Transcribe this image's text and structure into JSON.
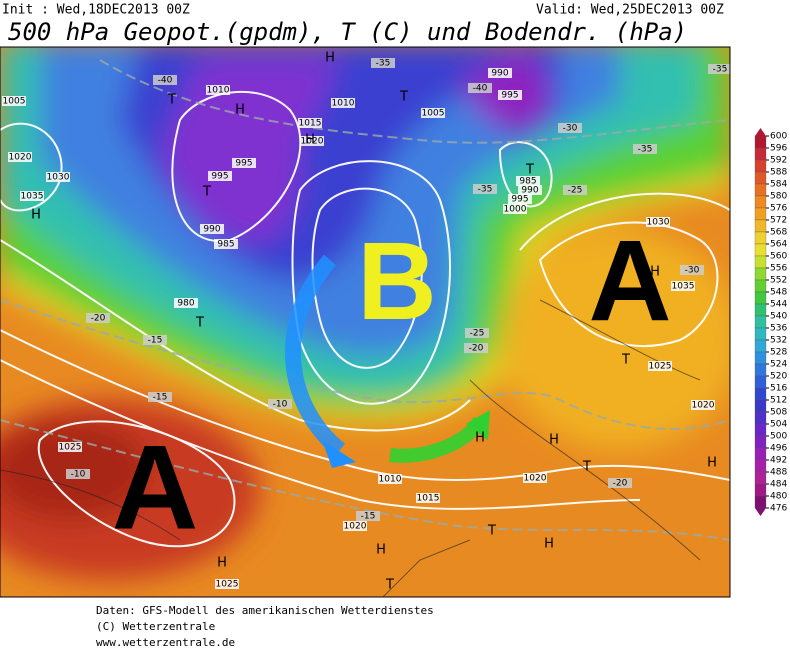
{
  "header": {
    "init": "Init : Wed,18DEC2013 00Z",
    "valid": "Valid: Wed,25DEC2013 00Z",
    "title": "500 hPa Geopot.(gpdm), T (C) und Bodendr. (hPa)"
  },
  "big_letters": [
    "A",
    "B",
    "A"
  ],
  "map_labels": [
    "1010",
    "1005",
    "1020",
    "1030",
    "1035",
    "995",
    "995",
    "990",
    "985",
    "980",
    "1010",
    "1015",
    "1020",
    "1005",
    "990",
    "995",
    "985",
    "990",
    "995",
    "1000",
    "1030",
    "1035",
    "1025",
    "1020",
    "1020",
    "1015",
    "1010",
    "1020",
    "1025",
    "1025",
    "-40",
    "-35",
    "-40",
    "-30",
    "-35",
    "-35",
    "-35",
    "-25",
    "-20",
    "-15",
    "-15",
    "-10",
    "-10",
    "-15",
    "-20",
    "-20",
    "-25",
    "-30"
  ],
  "centers": [
    "H",
    "T",
    "H",
    "H",
    "T",
    "T",
    "T",
    "H",
    "T",
    "H",
    "T",
    "H",
    "T",
    "H",
    "T",
    "H",
    "H",
    "T",
    "H",
    "H"
  ],
  "colorbar": {
    "ticks": [
      600,
      596,
      592,
      588,
      584,
      580,
      576,
      572,
      568,
      564,
      560,
      556,
      552,
      548,
      544,
      540,
      536,
      532,
      528,
      524,
      520,
      516,
      512,
      508,
      504,
      500,
      496,
      492,
      488,
      484,
      480,
      476
    ]
  },
  "footer": [
    "Daten: GFS-Modell des amerikanischen Wetterdienstes",
    "(C) Wetterzentrale",
    "www.wetterzentrale.de"
  ]
}
